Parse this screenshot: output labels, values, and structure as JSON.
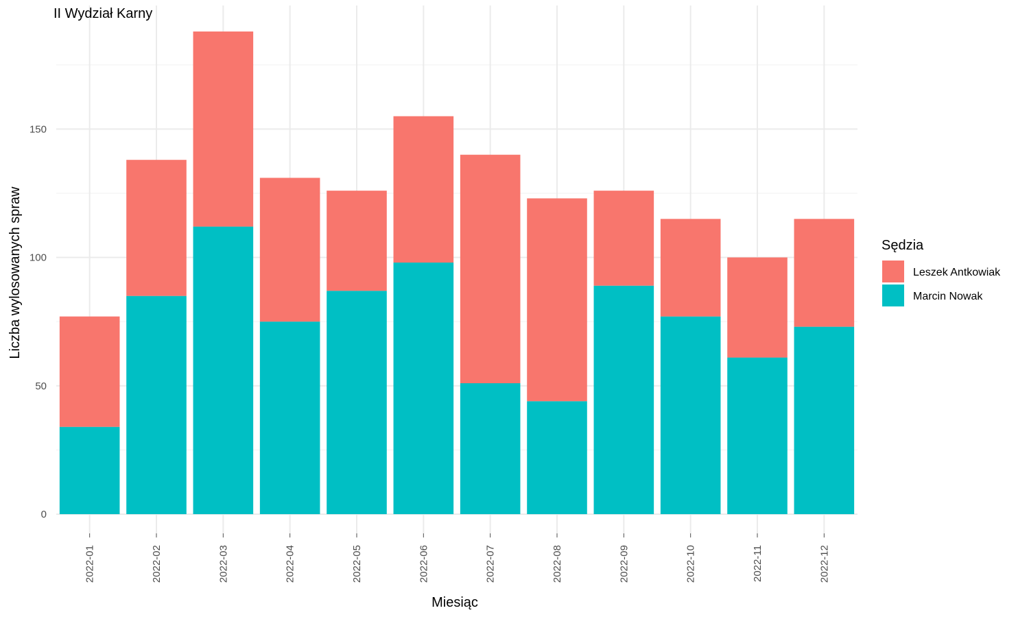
{
  "chart_data": {
    "type": "bar",
    "stacked": true,
    "title": "",
    "subtitle": "II Wydział Karny",
    "xlabel": "Miesiąc",
    "ylabel": "Liczba wylosowanych spraw",
    "categories": [
      "2022-01",
      "2022-02",
      "2022-03",
      "2022-04",
      "2022-05",
      "2022-06",
      "2022-07",
      "2022-08",
      "2022-09",
      "2022-10",
      "2022-11",
      "2022-12"
    ],
    "series": [
      {
        "name": "Marcin Nowak",
        "color": "#00BFC4",
        "values": [
          34,
          85,
          112,
          75,
          87,
          98,
          51,
          44,
          89,
          77,
          61,
          73
        ]
      },
      {
        "name": "Leszek Antkowiak",
        "color": "#F8766D",
        "values": [
          43,
          53,
          76,
          56,
          39,
          57,
          89,
          79,
          37,
          38,
          39,
          42
        ]
      }
    ],
    "ylim": [
      0,
      197
    ],
    "yticks": [
      0,
      50,
      100,
      150
    ],
    "grid": true,
    "legend": {
      "title": "Sędzia",
      "position": "right",
      "order": [
        "Leszek Antkowiak",
        "Marcin Nowak"
      ]
    }
  }
}
